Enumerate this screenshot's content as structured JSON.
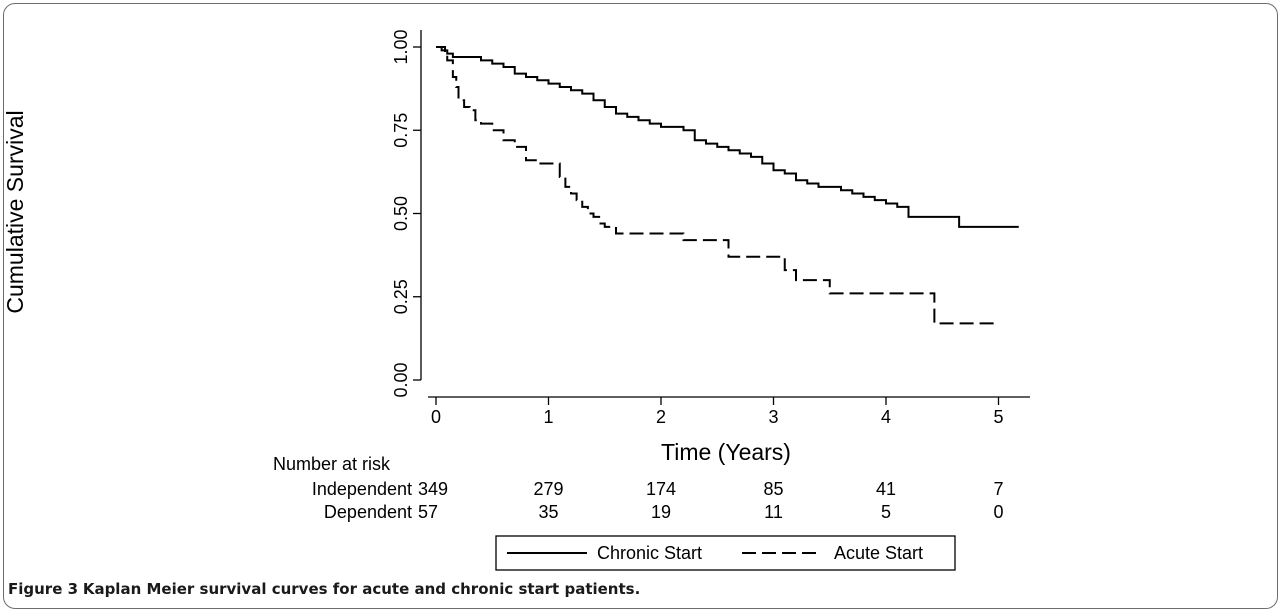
{
  "caption": {
    "label": "Figure 3",
    "text": "Kaplan Meier survival curves for acute and chronic start patients."
  },
  "chart_data": {
    "type": "line",
    "xlabel": "Time (Years)",
    "ylabel": "Cumulative Survival",
    "xlim": [
      -0.1,
      5.22
    ],
    "ylim": [
      -0.03,
      1.05
    ],
    "x_ticks": [
      "0",
      "1",
      "2",
      "3",
      "4",
      "5"
    ],
    "y_ticks": [
      "0.00",
      "0.25",
      "0.50",
      "0.75",
      "1.00"
    ],
    "series": [
      {
        "name": "Chronic Start",
        "style": "solid",
        "x": [
          0,
          0.05,
          0.1,
          0.15,
          0.25,
          0.4,
          0.5,
          0.6,
          0.7,
          0.8,
          0.9,
          1.0,
          1.1,
          1.2,
          1.3,
          1.4,
          1.5,
          1.6,
          1.7,
          1.8,
          1.9,
          2.0,
          2.1,
          2.2,
          2.3,
          2.4,
          2.5,
          2.6,
          2.7,
          2.8,
          2.9,
          3.0,
          3.1,
          3.2,
          3.3,
          3.4,
          3.5,
          3.6,
          3.7,
          3.8,
          3.9,
          4.0,
          4.1,
          4.2,
          4.4,
          4.6,
          4.65,
          5.18
        ],
        "y": [
          1.0,
          0.99,
          0.98,
          0.97,
          0.97,
          0.96,
          0.95,
          0.94,
          0.92,
          0.91,
          0.9,
          0.89,
          0.88,
          0.87,
          0.86,
          0.84,
          0.82,
          0.8,
          0.79,
          0.78,
          0.77,
          0.76,
          0.76,
          0.75,
          0.72,
          0.71,
          0.7,
          0.69,
          0.68,
          0.67,
          0.65,
          0.63,
          0.62,
          0.6,
          0.59,
          0.58,
          0.58,
          0.57,
          0.56,
          0.55,
          0.54,
          0.53,
          0.52,
          0.49,
          0.49,
          0.49,
          0.46,
          0.46
        ]
      },
      {
        "name": "Acute Start",
        "style": "dashed",
        "x": [
          0,
          0.08,
          0.1,
          0.15,
          0.18,
          0.2,
          0.25,
          0.3,
          0.35,
          0.4,
          0.5,
          0.6,
          0.7,
          0.8,
          0.9,
          1.0,
          1.1,
          1.15,
          1.2,
          1.25,
          1.3,
          1.35,
          1.4,
          1.45,
          1.5,
          1.6,
          2.0,
          2.2,
          2.4,
          2.6,
          2.8,
          3.0,
          3.1,
          3.2,
          3.5,
          3.6,
          4.38,
          4.43,
          5.0
        ],
        "y": [
          1.0,
          0.98,
          0.96,
          0.91,
          0.88,
          0.84,
          0.82,
          0.81,
          0.78,
          0.77,
          0.75,
          0.72,
          0.7,
          0.66,
          0.65,
          0.65,
          0.61,
          0.58,
          0.56,
          0.54,
          0.52,
          0.5,
          0.49,
          0.47,
          0.46,
          0.44,
          0.44,
          0.42,
          0.42,
          0.37,
          0.37,
          0.37,
          0.33,
          0.3,
          0.26,
          0.26,
          0.26,
          0.17,
          0.17
        ]
      }
    ],
    "risk_table": {
      "title": "Number at risk",
      "rows": [
        {
          "label": "Independent",
          "values": [
            "349",
            "279",
            "174",
            "85",
            "41",
            "7"
          ]
        },
        {
          "label": "Dependent",
          "values": [
            "57",
            "35",
            "19",
            "11",
            "5",
            "0"
          ]
        }
      ]
    },
    "legend": {
      "position": "bottom",
      "entries": [
        "Chronic Start",
        "Acute Start"
      ]
    }
  }
}
